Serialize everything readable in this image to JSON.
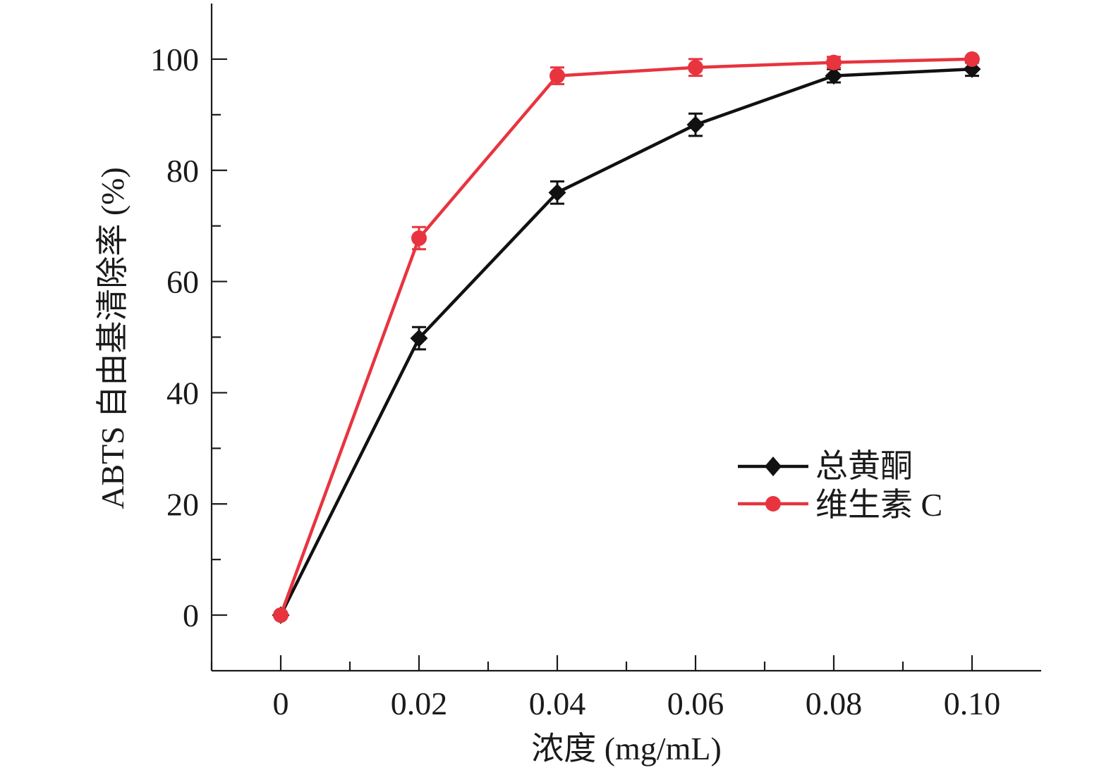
{
  "chart_data": {
    "type": "line",
    "x": [
      0,
      0.02,
      0.04,
      0.06,
      0.08,
      0.1
    ],
    "x_tick_labels": [
      "0",
      "0.02",
      "0.04",
      "0.06",
      "0.08",
      "0.10"
    ],
    "y_tick_labels": [
      "0",
      "20",
      "40",
      "60",
      "80",
      "100"
    ],
    "xlabel": "浓度 (mg/mL)",
    "ylabel": "ABTS 自由基清除率 (%)",
    "xlim": [
      -0.01,
      0.11
    ],
    "ylim": [
      -10,
      110
    ],
    "grid": false,
    "legend_position": "right",
    "series": [
      {
        "name": "总黄酮",
        "color": "#111111",
        "marker": "diamond",
        "values": [
          0,
          49.8,
          76,
          88.2,
          97,
          98.2
        ],
        "errors": [
          0.5,
          2.0,
          2.0,
          2.0,
          1.2,
          1.2
        ]
      },
      {
        "name": "维生素 C",
        "color": "#e8343f",
        "marker": "circle",
        "values": [
          0,
          67.8,
          97,
          98.5,
          99.4,
          100
        ],
        "errors": [
          0.5,
          2.0,
          1.5,
          1.5,
          1.0,
          0.5
        ]
      }
    ]
  }
}
